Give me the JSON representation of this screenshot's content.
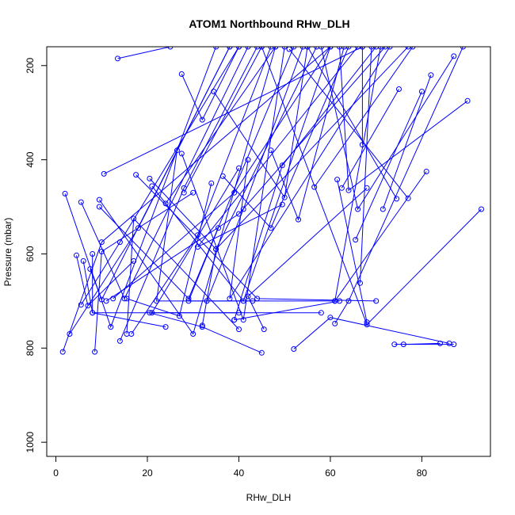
{
  "chart_data": {
    "type": "line",
    "title": "ATOM1 Northbound RHw_DLH",
    "xlabel": "RHw_DLH",
    "ylabel": "Pressure (mbar)",
    "xlim": [
      -2,
      95
    ],
    "ylim": [
      1030,
      160
    ],
    "y_reversed": true,
    "xticks": [
      0,
      20,
      40,
      60,
      80
    ],
    "yticks": [
      200,
      400,
      600,
      800,
      1000
    ],
    "grid": false,
    "color": "#0000ff",
    "segments": [
      {
        "points": [
          [
            13.5,
            185
          ],
          [
            25,
            160
          ]
        ]
      },
      {
        "points": [
          [
            27.5,
            218
          ],
          [
            32,
            315
          ],
          [
            40,
            160
          ]
        ]
      },
      {
        "points": [
          [
            34.5,
            255
          ],
          [
            50,
            480
          ],
          [
            55,
            160
          ]
        ]
      },
      {
        "points": [
          [
            87,
            180
          ],
          [
            66,
            505
          ],
          [
            58,
            160
          ]
        ]
      },
      {
        "points": [
          [
            90,
            275
          ],
          [
            64,
            465
          ],
          [
            62,
            160
          ]
        ]
      },
      {
        "points": [
          [
            10.5,
            430
          ],
          [
            67,
            160
          ]
        ]
      },
      {
        "points": [
          [
            81,
            425
          ],
          [
            61,
            700
          ],
          [
            71,
            160
          ]
        ]
      },
      {
        "points": [
          [
            93,
            505
          ],
          [
            68,
            750
          ],
          [
            45,
            160
          ]
        ]
      },
      {
        "points": [
          [
            2,
            472
          ],
          [
            12,
            755
          ],
          [
            35,
            160
          ]
        ]
      },
      {
        "points": [
          [
            5.5,
            490
          ],
          [
            15,
            695
          ],
          [
            42,
            160
          ]
        ]
      },
      {
        "points": [
          [
            9.5,
            485
          ],
          [
            30,
            770
          ],
          [
            48,
            160
          ]
        ]
      },
      {
        "points": [
          [
            9.5,
            500
          ],
          [
            29,
            695
          ],
          [
            52,
            160
          ]
        ]
      },
      {
        "points": [
          [
            20.5,
            440
          ],
          [
            35,
            590
          ],
          [
            57,
            160
          ]
        ]
      },
      {
        "points": [
          [
            21,
            456
          ],
          [
            41,
            700
          ],
          [
            60,
            160
          ]
        ]
      },
      {
        "points": [
          [
            24,
            493
          ],
          [
            48,
            160
          ]
        ]
      },
      {
        "points": [
          [
            17.5,
            432
          ],
          [
            44,
            695
          ],
          [
            70,
            700
          ]
        ]
      },
      {
        "points": [
          [
            27.5,
            387
          ],
          [
            41,
            740
          ],
          [
            50,
            160
          ]
        ]
      },
      {
        "points": [
          [
            26.5,
            380
          ],
          [
            22,
            700
          ],
          [
            61,
            700
          ]
        ]
      },
      {
        "points": [
          [
            36.5,
            435
          ],
          [
            47,
            545
          ],
          [
            64,
            160
          ]
        ]
      },
      {
        "points": [
          [
            40,
            418
          ],
          [
            21,
            725
          ],
          [
            58,
            725
          ]
        ]
      },
      {
        "points": [
          [
            42,
            400
          ],
          [
            38,
            695
          ],
          [
            73,
            160
          ]
        ]
      },
      {
        "points": [
          [
            39,
            740
          ],
          [
            49.5,
            412
          ],
          [
            70,
            160
          ]
        ]
      },
      {
        "points": [
          [
            47,
            380
          ],
          [
            53,
            527
          ],
          [
            63,
            160
          ]
        ]
      },
      {
        "points": [
          [
            49.5,
            495
          ],
          [
            31,
            585
          ],
          [
            66,
            160
          ]
        ]
      },
      {
        "points": [
          [
            56.5,
            458
          ],
          [
            78,
            160
          ]
        ]
      },
      {
        "points": [
          [
            67,
            368
          ],
          [
            67,
            160
          ]
        ]
      },
      {
        "points": [
          [
            61.5,
            442
          ],
          [
            68,
            745
          ]
        ]
      },
      {
        "points": [
          [
            62.5,
            460
          ],
          [
            75,
            250
          ]
        ]
      },
      {
        "points": [
          [
            65.5,
            570
          ],
          [
            80,
            255
          ]
        ]
      },
      {
        "points": [
          [
            66.5,
            662
          ],
          [
            69,
            160
          ]
        ]
      },
      {
        "points": [
          [
            71.5,
            505
          ],
          [
            82,
            220
          ]
        ]
      },
      {
        "points": [
          [
            74.5,
            483
          ],
          [
            55,
            160
          ]
        ]
      },
      {
        "points": [
          [
            77,
            482
          ],
          [
            51,
            165
          ]
        ]
      },
      {
        "points": [
          [
            4.5,
            603
          ],
          [
            7,
            710
          ],
          [
            17,
            615
          ]
        ]
      },
      {
        "points": [
          [
            5.5,
            708
          ],
          [
            14,
            575
          ],
          [
            40,
            160
          ]
        ]
      },
      {
        "points": [
          [
            6,
            615
          ],
          [
            8,
            725
          ],
          [
            24,
            755
          ]
        ]
      },
      {
        "points": [
          [
            7.5,
            632
          ],
          [
            10,
            697
          ],
          [
            38,
            160
          ]
        ]
      },
      {
        "points": [
          [
            8,
            600
          ],
          [
            8,
            725
          ],
          [
            40,
            725
          ]
        ]
      },
      {
        "points": [
          [
            8.5,
            808
          ],
          [
            10,
            595
          ],
          [
            30,
            470
          ]
        ]
      },
      {
        "points": [
          [
            1.5,
            808
          ],
          [
            10,
            575
          ],
          [
            60,
            160
          ]
        ]
      },
      {
        "points": [
          [
            3,
            770
          ],
          [
            18,
            545
          ],
          [
            38,
            160
          ]
        ]
      },
      {
        "points": [
          [
            14,
            785
          ],
          [
            28,
            460
          ],
          [
            44,
            160
          ]
        ]
      },
      {
        "points": [
          [
            15.5,
            770
          ],
          [
            17,
            525
          ],
          [
            40,
            760
          ]
        ]
      },
      {
        "points": [
          [
            16.5,
            770
          ],
          [
            31,
            560
          ],
          [
            47,
            160
          ]
        ]
      },
      {
        "points": [
          [
            15.5,
            695
          ],
          [
            27,
            732
          ],
          [
            34,
            450
          ]
        ]
      },
      {
        "points": [
          [
            12.5,
            695
          ],
          [
            39,
            470
          ],
          [
            60,
            160
          ]
        ]
      },
      {
        "points": [
          [
            11,
            700
          ],
          [
            40,
            515
          ],
          [
            72,
            160
          ]
        ]
      },
      {
        "points": [
          [
            20.5,
            725
          ],
          [
            32,
            755
          ],
          [
            45,
            810
          ]
        ]
      },
      {
        "points": [
          [
            28,
            470
          ],
          [
            45,
            160
          ]
        ]
      },
      {
        "points": [
          [
            32,
            752
          ],
          [
            35,
            590
          ],
          [
            77,
            160
          ]
        ]
      },
      {
        "points": [
          [
            33,
            700
          ],
          [
            41,
            505
          ],
          [
            54,
            160
          ]
        ]
      },
      {
        "points": [
          [
            35.5,
            545
          ],
          [
            29,
            700
          ],
          [
            43,
            700
          ]
        ]
      },
      {
        "points": [
          [
            45.5,
            760
          ],
          [
            42,
            690
          ],
          [
            68,
            460
          ]
        ]
      },
      {
        "points": [
          [
            39,
            740
          ],
          [
            62,
            700
          ]
        ]
      },
      {
        "points": [
          [
            52,
            802
          ],
          [
            60,
            735
          ],
          [
            86,
            790
          ]
        ]
      },
      {
        "points": [
          [
            74,
            792
          ],
          [
            87,
            792
          ]
        ]
      },
      {
        "points": [
          [
            76,
            792
          ],
          [
            84,
            790
          ]
        ]
      },
      {
        "points": [
          [
            61,
            748
          ],
          [
            64,
            700
          ],
          [
            89,
            160
          ]
        ]
      }
    ]
  }
}
